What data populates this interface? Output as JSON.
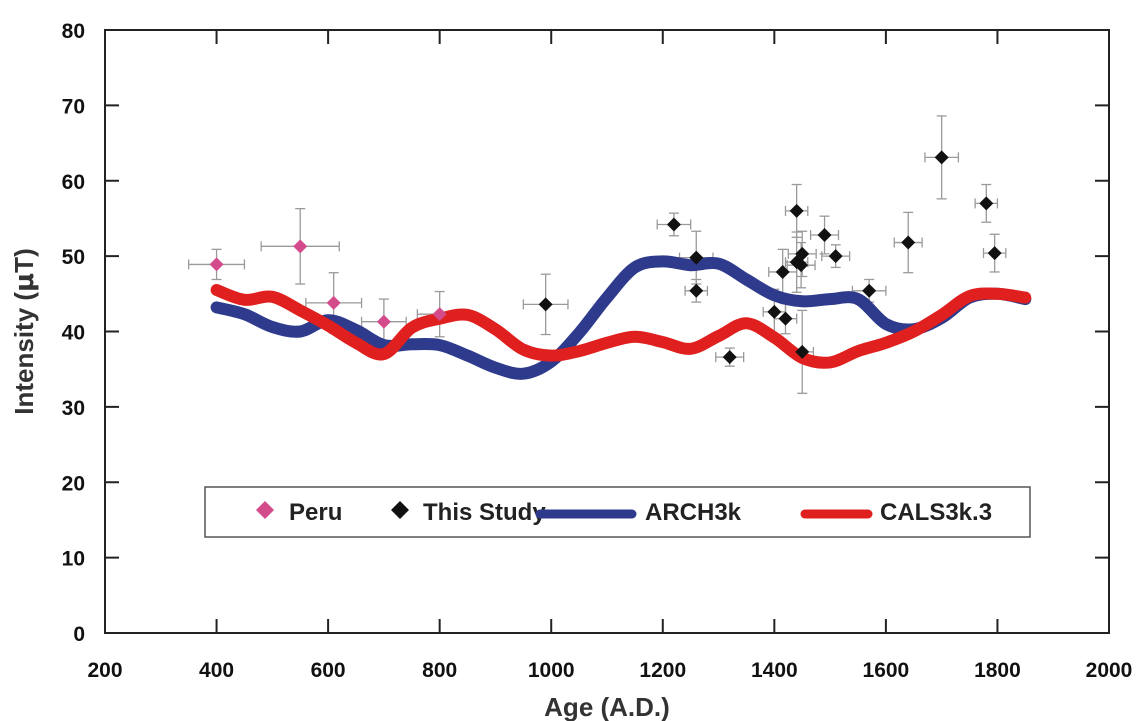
{
  "chart_data": {
    "type": "scatter",
    "xlabel": "Age (A.D.)",
    "ylabel_prefix": "Intensity (",
    "ylabel_mu": "μ",
    "ylabel_suffix": "T)",
    "xlim": [
      200,
      2000
    ],
    "ylim": [
      0,
      80
    ],
    "xticks": [
      "200",
      "400",
      "600",
      "800",
      "1000",
      "1200",
      "1400",
      "1600",
      "1800",
      "2000"
    ],
    "yticks": [
      "0",
      "10",
      "20",
      "30",
      "40",
      "50",
      "60",
      "70",
      "80"
    ],
    "grid": false,
    "legend_position": "bottom-center",
    "colors": {
      "peru": "#d44b8c",
      "study": "#111111",
      "arch3k": "#2e3a8c",
      "cals3k": "#e0201f",
      "errorbar": "#9a9a9a",
      "axis": "#222222"
    },
    "legend": [
      {
        "key": "peru",
        "label": "Peru",
        "kind": "marker"
      },
      {
        "key": "study",
        "label": "This Study",
        "kind": "marker"
      },
      {
        "key": "arch3k",
        "label": "ARCH3k",
        "kind": "line"
      },
      {
        "key": "cals3k",
        "label": "CALS3k.3",
        "kind": "line"
      }
    ],
    "series": [
      {
        "key": "peru",
        "name": "Peru",
        "kind": "marker",
        "points": [
          {
            "x": 400,
            "y": 48.9,
            "xerr": 50,
            "yerr": 2
          },
          {
            "x": 550,
            "y": 51.3,
            "xerr": 70,
            "yerr": 5
          },
          {
            "x": 610,
            "y": 43.8,
            "xerr": 50,
            "yerr": 4
          },
          {
            "x": 700,
            "y": 41.3,
            "xerr": 40,
            "yerr": 3
          },
          {
            "x": 800,
            "y": 42.3,
            "xerr": 40,
            "yerr": 3
          }
        ]
      },
      {
        "key": "study",
        "name": "This Study",
        "kind": "marker",
        "points": [
          {
            "x": 990,
            "y": 43.6,
            "xerr": 40,
            "yerr": 4
          },
          {
            "x": 1220,
            "y": 54.2,
            "xerr": 30,
            "yerr": 1.5
          },
          {
            "x": 1260,
            "y": 49.8,
            "xerr": 30,
            "yerr": 3.5
          },
          {
            "x": 1260,
            "y": 45.4,
            "xerr": 20,
            "yerr": 1.5
          },
          {
            "x": 1320,
            "y": 36.6,
            "xerr": 25,
            "yerr": 1.2
          },
          {
            "x": 1400,
            "y": 42.6,
            "xerr": 20,
            "yerr": 3
          },
          {
            "x": 1415,
            "y": 47.9,
            "xerr": 25,
            "yerr": 3
          },
          {
            "x": 1420,
            "y": 41.7,
            "xerr": 20,
            "yerr": 2
          },
          {
            "x": 1440,
            "y": 56.0,
            "xerr": 20,
            "yerr": 3.5
          },
          {
            "x": 1440,
            "y": 49.2,
            "xerr": 20,
            "yerr": 4
          },
          {
            "x": 1448,
            "y": 48.8,
            "xerr": 25,
            "yerr": 3
          },
          {
            "x": 1450,
            "y": 50.3,
            "xerr": 25,
            "yerr": 3
          },
          {
            "x": 1450,
            "y": 37.3,
            "xerr": 20,
            "yerr": 5.5
          },
          {
            "x": 1490,
            "y": 52.8,
            "xerr": 25,
            "yerr": 2.5
          },
          {
            "x": 1510,
            "y": 50.0,
            "xerr": 25,
            "yerr": 1.5
          },
          {
            "x": 1570,
            "y": 45.4,
            "xerr": 30,
            "yerr": 1.5
          },
          {
            "x": 1640,
            "y": 51.8,
            "xerr": 25,
            "yerr": 4
          },
          {
            "x": 1700,
            "y": 63.1,
            "xerr": 30,
            "yerr": 5.5
          },
          {
            "x": 1780,
            "y": 57.0,
            "xerr": 20,
            "yerr": 2.5
          },
          {
            "x": 1795,
            "y": 50.4,
            "xerr": 20,
            "yerr": 2.5
          }
        ]
      },
      {
        "key": "arch3k",
        "name": "ARCH3k",
        "kind": "line",
        "x": [
          400,
          450,
          500,
          550,
          600,
          650,
          700,
          750,
          800,
          850,
          900,
          950,
          1000,
          1050,
          1100,
          1150,
          1200,
          1250,
          1300,
          1350,
          1400,
          1450,
          1500,
          1550,
          1600,
          1650,
          1700,
          1750,
          1800,
          1850
        ],
        "y": [
          43.2,
          42.3,
          40.6,
          40.0,
          41.5,
          40.2,
          38.2,
          38.3,
          38.2,
          36.8,
          35.2,
          34.4,
          36.0,
          39.8,
          44.5,
          48.5,
          49.3,
          48.8,
          49.0,
          46.9,
          44.8,
          44.0,
          44.3,
          44.3,
          41.0,
          40.3,
          41.8,
          44.5,
          45.0,
          44.3
        ]
      },
      {
        "key": "cals3k",
        "name": "CALS3k.3",
        "kind": "line",
        "x": [
          400,
          450,
          500,
          550,
          600,
          650,
          700,
          750,
          800,
          850,
          900,
          950,
          1000,
          1050,
          1100,
          1150,
          1200,
          1250,
          1300,
          1350,
          1400,
          1450,
          1500,
          1550,
          1600,
          1650,
          1700,
          1750,
          1800,
          1850
        ],
        "y": [
          45.5,
          44.2,
          44.6,
          42.8,
          40.8,
          38.5,
          37.0,
          40.5,
          41.7,
          42.2,
          40.3,
          37.6,
          36.8,
          37.4,
          38.5,
          39.3,
          38.6,
          37.7,
          39.4,
          41.1,
          39.2,
          36.5,
          35.9,
          37.4,
          38.5,
          40.0,
          42.2,
          44.7,
          45.0,
          44.5
        ]
      }
    ]
  }
}
